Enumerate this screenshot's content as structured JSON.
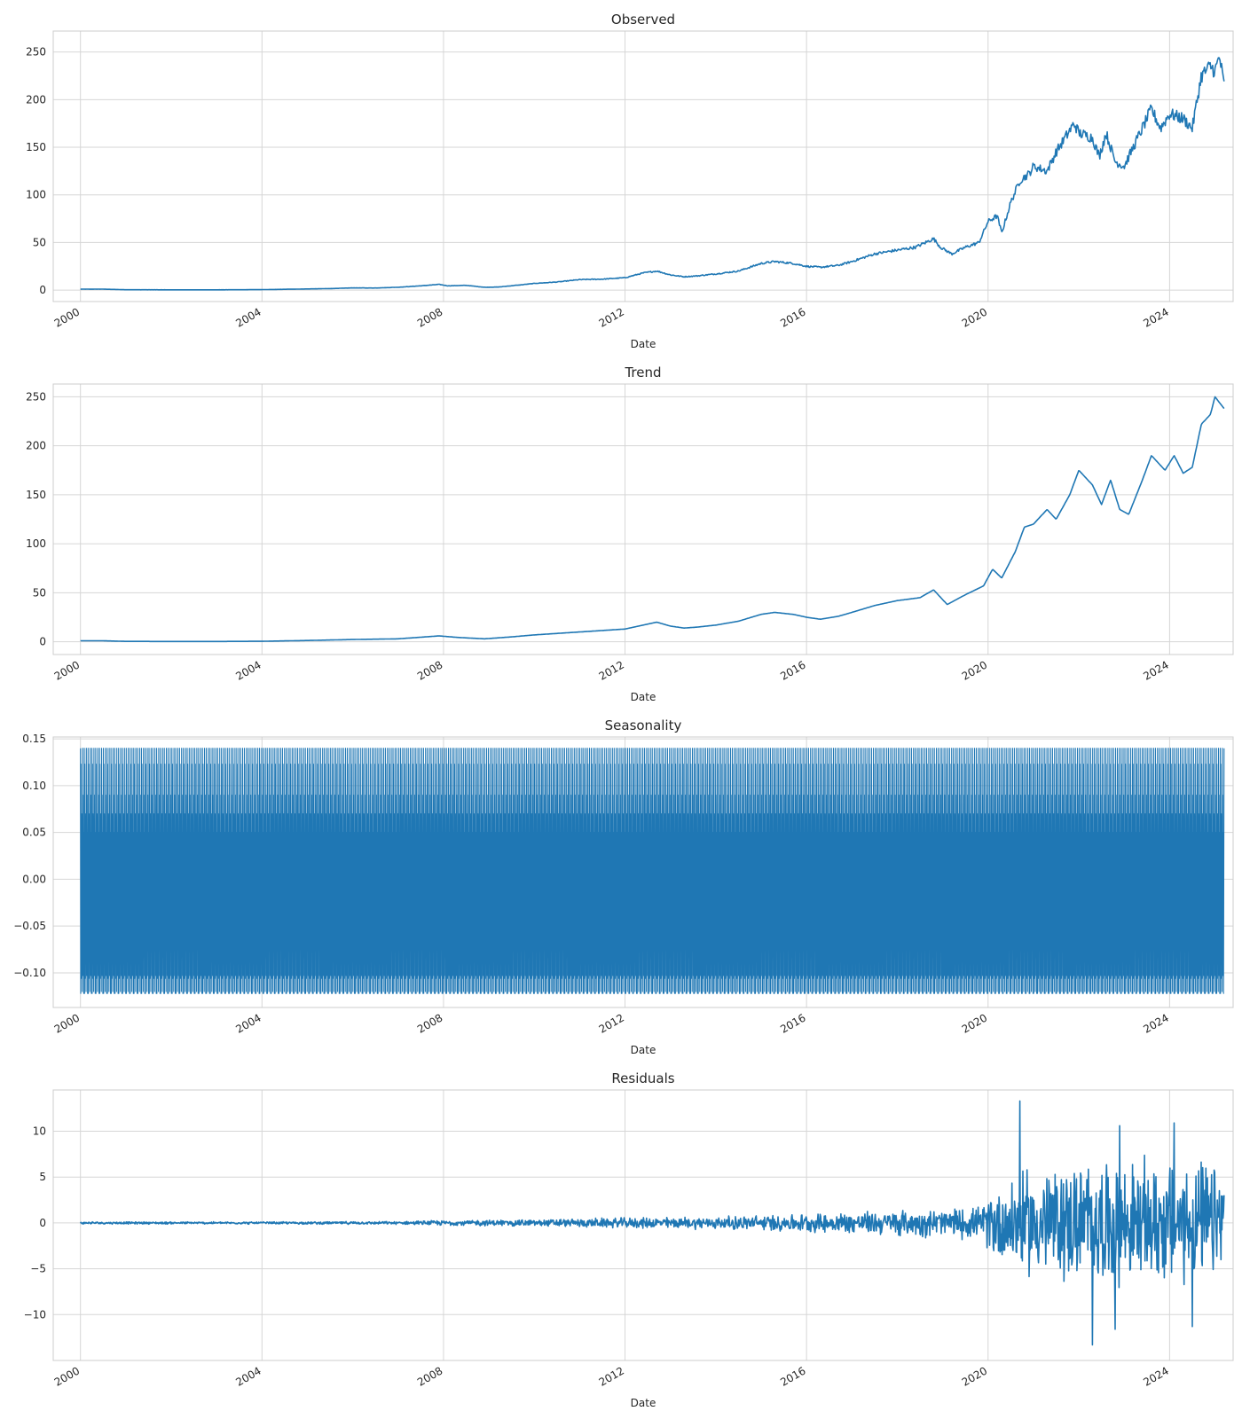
{
  "chart_data": [
    {
      "type": "line",
      "title": "Observed",
      "xlabel": "Date",
      "ylabel": "",
      "xlim": [
        1999.4,
        2025.4
      ],
      "ylim": [
        -12,
        272
      ],
      "yticks": [
        0,
        50,
        100,
        150,
        200,
        250
      ],
      "ytick_labels": [
        "0",
        "50",
        "100",
        "150",
        "200",
        "250"
      ],
      "xticks": [
        2000,
        2004,
        2008,
        2012,
        2016,
        2020,
        2024
      ],
      "xtick_labels": [
        "2000",
        "2004",
        "2008",
        "2012",
        "2016",
        "2020",
        "2024"
      ],
      "grid": true,
      "color": "#1f77b4",
      "series": [
        {
          "x": [
            2000.0,
            2000.5,
            2001.0,
            2002.0,
            2003.0,
            2004.0,
            2005.0,
            2005.5,
            2006.0,
            2006.5,
            2007.0,
            2007.5,
            2007.9,
            2008.1,
            2008.5,
            2008.9,
            2009.2,
            2009.6,
            2010.0,
            2010.5,
            2011.0,
            2011.5,
            2012.0,
            2012.4,
            2012.7,
            2013.0,
            2013.3,
            2013.6,
            2014.0,
            2014.5,
            2015.0,
            2015.3,
            2015.7,
            2016.0,
            2016.3,
            2016.7,
            2017.0,
            2017.5,
            2018.0,
            2018.4,
            2018.8,
            2018.95,
            2019.2,
            2019.5,
            2019.8,
            2020.0,
            2020.2,
            2020.3,
            2020.5,
            2020.7,
            2020.9,
            2021.0,
            2021.3,
            2021.5,
            2021.9,
            2022.0,
            2022.3,
            2022.45,
            2022.6,
            2022.8,
            2023.0,
            2023.3,
            2023.6,
            2023.8,
            2024.0,
            2024.3,
            2024.5,
            2024.7,
            2024.9,
            2025.0,
            2025.1,
            2025.2
          ],
          "y": [
            1,
            1,
            0.4,
            0.3,
            0.3,
            0.5,
            1.2,
            1.6,
            2.3,
            2.2,
            3,
            4.5,
            6,
            4.5,
            5,
            3,
            3.2,
            5,
            7,
            8.5,
            11,
            11.5,
            13,
            18,
            20,
            16,
            14,
            15,
            17,
            20,
            28,
            30,
            28,
            25,
            24,
            26,
            30,
            38,
            42,
            45,
            54,
            45,
            38,
            45,
            50,
            72,
            78,
            60,
            92,
            115,
            122,
            130,
            125,
            145,
            175,
            165,
            160,
            140,
            165,
            135,
            130,
            160,
            190,
            170,
            185,
            180,
            170,
            225,
            235,
            230,
            245,
            215
          ]
        }
      ]
    },
    {
      "type": "line",
      "title": "Trend",
      "xlabel": "Date",
      "ylabel": "",
      "xlim": [
        1999.4,
        2025.4
      ],
      "ylim": [
        -13,
        263
      ],
      "yticks": [
        0,
        50,
        100,
        150,
        200,
        250
      ],
      "ytick_labels": [
        "0",
        "50",
        "100",
        "150",
        "200",
        "250"
      ],
      "xticks": [
        2000,
        2004,
        2008,
        2012,
        2016,
        2020,
        2024
      ],
      "xtick_labels": [
        "2000",
        "2004",
        "2008",
        "2012",
        "2016",
        "2020",
        "2024"
      ],
      "grid": true,
      "color": "#1f77b4",
      "series": [
        {
          "x": [
            2000.0,
            2000.5,
            2001.0,
            2002.0,
            2003.0,
            2004.0,
            2005.0,
            2006.0,
            2007.0,
            2007.9,
            2008.3,
            2008.9,
            2009.5,
            2010.0,
            2011.0,
            2012.0,
            2012.3,
            2012.7,
            2013.0,
            2013.3,
            2013.6,
            2014.0,
            2014.5,
            2015.0,
            2015.3,
            2015.7,
            2016.0,
            2016.3,
            2016.7,
            2017.0,
            2017.5,
            2018.0,
            2018.5,
            2018.8,
            2019.1,
            2019.5,
            2019.9,
            2020.1,
            2020.3,
            2020.6,
            2020.8,
            2021.0,
            2021.3,
            2021.5,
            2021.8,
            2022.0,
            2022.3,
            2022.5,
            2022.7,
            2022.9,
            2023.1,
            2023.4,
            2023.6,
            2023.9,
            2024.1,
            2024.3,
            2024.5,
            2024.7,
            2024.9,
            2025.0,
            2025.2
          ],
          "y": [
            1,
            1,
            0.4,
            0.3,
            0.3,
            0.5,
            1.3,
            2.3,
            3,
            6,
            4.5,
            3,
            5,
            7,
            10,
            13,
            16,
            20,
            16,
            14,
            15,
            17,
            21,
            28,
            30,
            28,
            25,
            23,
            26,
            30,
            37,
            42,
            45,
            53,
            38,
            48,
            57,
            74,
            65,
            92,
            117,
            120,
            135,
            125,
            150,
            175,
            160,
            140,
            165,
            135,
            130,
            165,
            190,
            175,
            190,
            172,
            178,
            222,
            232,
            250,
            238
          ]
        }
      ]
    },
    {
      "type": "line",
      "title": "Seasonality",
      "xlabel": "Date",
      "ylabel": "",
      "xlim": [
        1999.4,
        2025.4
      ],
      "ylim": [
        -0.137,
        0.152
      ],
      "yticks": [
        -0.1,
        -0.05,
        0.0,
        0.05,
        0.1,
        0.15
      ],
      "ytick_labels": [
        "−0.10",
        "−0.05",
        "0.00",
        "0.05",
        "0.10",
        "0.15"
      ],
      "xticks": [
        2000,
        2004,
        2008,
        2012,
        2016,
        2020,
        2024
      ],
      "xtick_labels": [
        "2000",
        "2004",
        "2008",
        "2012",
        "2016",
        "2020",
        "2024"
      ],
      "grid": true,
      "color": "#1f77b4",
      "periodic": {
        "x_start": 2000.0,
        "x_end": 2025.2,
        "cycles": 300,
        "max": 0.14,
        "min": -0.122,
        "pattern": [
          0.14,
          -0.122,
          0.123,
          -0.106,
          0.07,
          -0.06,
          0.03,
          -0.12,
          0.14,
          -0.05,
          0.09,
          -0.103,
          0.05,
          -0.122,
          0.016
        ]
      }
    },
    {
      "type": "line",
      "title": "Residuals",
      "xlabel": "Date",
      "ylabel": "",
      "xlim": [
        1999.4,
        2025.4
      ],
      "ylim": [
        -15,
        14.5
      ],
      "yticks": [
        -10,
        -5,
        0,
        5,
        10
      ],
      "ytick_labels": [
        "−10",
        "−5",
        "0",
        "5",
        "10"
      ],
      "xticks": [
        2000,
        2004,
        2008,
        2012,
        2016,
        2020,
        2024
      ],
      "xtick_labels": [
        "2000",
        "2004",
        "2008",
        "2012",
        "2016",
        "2020",
        "2024"
      ],
      "grid": true,
      "color": "#1f77b4",
      "envelope": {
        "x": [
          2000.0,
          2004.0,
          2007.0,
          2008.0,
          2010.0,
          2012.0,
          2014.0,
          2016.0,
          2018.0,
          2019.9,
          2020.1,
          2021.0,
          2022.0,
          2023.0,
          2024.0,
          2025.2
        ],
        "amplitude": [
          0.2,
          0.2,
          0.25,
          0.45,
          0.6,
          0.9,
          1.1,
          1.6,
          2.2,
          2.8,
          6.5,
          9.5,
          10.5,
          10.5,
          11,
          10
        ]
      },
      "extremes": [
        {
          "x": 2020.7,
          "y": 13.3
        },
        {
          "x": 2022.3,
          "y": -13.3
        },
        {
          "x": 2024.5,
          "y": -11.3
        },
        {
          "x": 2022.8,
          "y": -11.6
        },
        {
          "x": 2024.1,
          "y": 10.9
        },
        {
          "x": 2022.9,
          "y": 10.6
        }
      ]
    }
  ]
}
